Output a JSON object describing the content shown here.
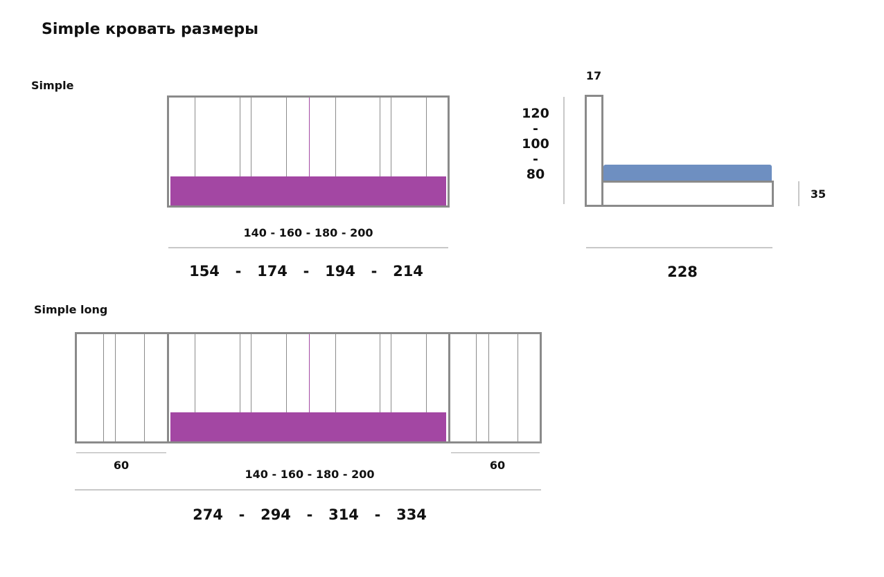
{
  "title": "Simple кровать размеры",
  "colors": {
    "mattress": "#a347a3",
    "topper": "#6e8fc1",
    "frame": "#8a8a8a",
    "dim_line": "#c8c8c8"
  },
  "simple": {
    "label": "Simple",
    "mattress_widths": "140  -  160 - 180  -  200",
    "total_widths": [
      "154",
      "-",
      "174",
      "-",
      "194",
      "-",
      "214"
    ]
  },
  "side_view": {
    "headboard_thickness": "17",
    "headboard_heights": [
      "120",
      "-",
      "100",
      "-",
      "80"
    ],
    "base_height": "35",
    "length": "228"
  },
  "simple_long": {
    "label": "Simple long",
    "left_panel_width": "60",
    "right_panel_width": "60",
    "mattress_widths": "140  -  160  -  180  -  200",
    "total_widths": [
      "274",
      "-",
      "294",
      "-",
      "314",
      "-",
      "334"
    ]
  }
}
